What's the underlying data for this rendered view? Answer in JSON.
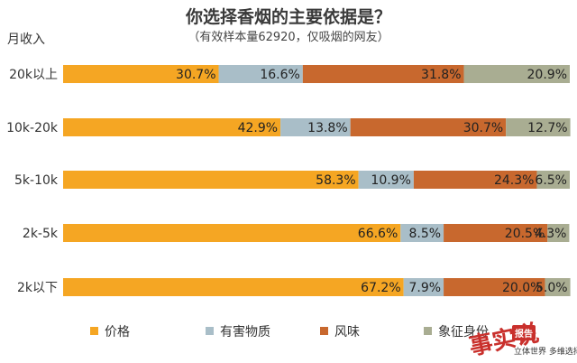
{
  "chart_data": {
    "type": "bar",
    "stacked": true,
    "orientation": "horizontal",
    "title": "你选择香烟的主要依据是？",
    "subtitle": "（有效样本量62920，仅吸烟的网友）",
    "ylabel": "月收入",
    "categories": [
      "20k以上",
      "10k-20k",
      "5k-10k",
      "2k-5k",
      "2k以下"
    ],
    "series": [
      {
        "name": "价格",
        "color": "#f5a623",
        "values": [
          30.7,
          42.9,
          58.3,
          66.6,
          67.2
        ]
      },
      {
        "name": "有害物质",
        "color": "#a9bec8",
        "values": [
          16.6,
          13.8,
          10.9,
          8.5,
          7.9
        ]
      },
      {
        "name": "风味",
        "color": "#c8682e",
        "values": [
          31.8,
          30.7,
          24.3,
          20.5,
          20.0
        ]
      },
      {
        "name": "象征身份",
        "color": "#a9ad92",
        "values": [
          20.9,
          12.7,
          6.5,
          4.3,
          5.0
        ]
      }
    ],
    "value_suffix": "%",
    "xlim": [
      0,
      100
    ],
    "legend": "bottom",
    "grid": false
  },
  "watermark": {
    "logo_text": "事实说",
    "badge": "报告",
    "tagline": "立体世界 多维选择"
  }
}
